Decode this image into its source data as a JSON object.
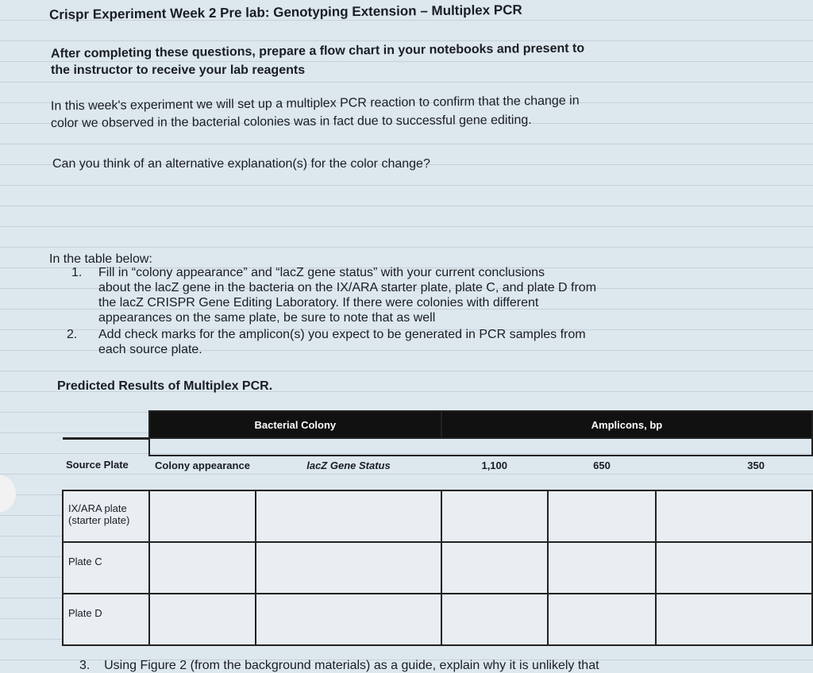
{
  "title": "Crispr Experiment Week 2 Pre lab: Genotyping Extension – Multiplex PCR",
  "instructions": [
    "After completing these questions, prepare a flow chart in your notebooks and present to",
    "the instructor to receive your lab reagents"
  ],
  "intro": [
    "In this week's experiment we will set up a multiplex PCR reaction to confirm that the change in",
    "color we observed in the bacterial colonies was in fact due to successful gene editing."
  ],
  "question": "Can you think of an alternative explanation(s) for the color change?",
  "table_intro": "In the table below:",
  "list": [
    {
      "num": "1.",
      "lines": [
        "Fill in “colony appearance” and “lacZ gene status” with your current conclusions",
        "about the lacZ gene in the bacteria on the IX/ARA starter plate, plate C, and plate D from",
        "the lacZ CRISPR Gene Editing Laboratory. If there were colonies with different",
        "appearances on the same plate, be sure to note that as well"
      ]
    },
    {
      "num": "2.",
      "lines": [
        "Add check marks for the amplicon(s) you expect to be generated in PCR samples from",
        "each source plate."
      ]
    }
  ],
  "table_title": "Predicted Results of Multiplex PCR.",
  "table": {
    "group_headers": [
      "Bacterial Colony",
      "Amplicons, bp"
    ],
    "columns": [
      "Source Plate",
      "Colony appearance",
      "lacZ Gene Status",
      "1,100",
      "650",
      "350"
    ],
    "rows": [
      "IX/ARA plate (starter plate)",
      "Plate C",
      "Plate D"
    ]
  },
  "footer": {
    "num": "3.",
    "text": "Using Figure 2 (from the background materials) as a guide, explain why it is unlikely that"
  }
}
